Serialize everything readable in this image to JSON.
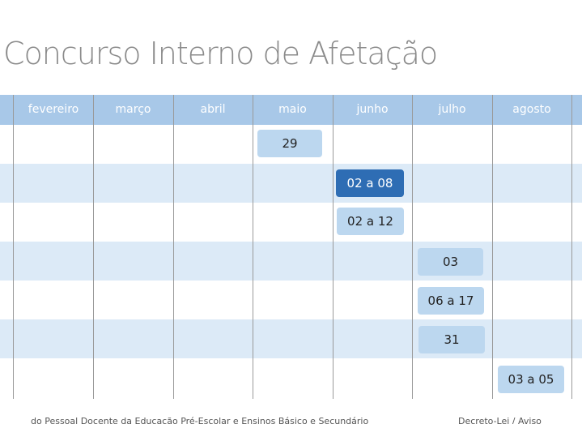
{
  "title": "Concurso Interno de Afetação",
  "months": [
    "fevereiro",
    "março",
    "abril",
    "maio",
    "junho",
    "julho",
    "agosto"
  ],
  "events": [
    {
      "label": "29",
      "month": "maio",
      "active": false
    },
    {
      "label": "02 a 08",
      "month": "junho",
      "active": true
    },
    {
      "label": "02 a 12",
      "month": "junho",
      "active": false
    },
    {
      "label": "03",
      "month": "julho",
      "active": false
    },
    {
      "label": "06 a 17",
      "month": "julho",
      "active": false
    },
    {
      "label": "31",
      "month": "julho",
      "active": false
    },
    {
      "label": "03 a 05",
      "month": "agosto",
      "active": false
    }
  ],
  "footer": {
    "left": "do Pessoal Docente da Educação Pré-Escolar e Ensinos Básico e Secundário",
    "right": "Decreto-Lei / Aviso"
  },
  "colors": {
    "header": "#a8c8e8",
    "row_shade": "#dceaf7",
    "pill": "#bcd7ef",
    "pill_active": "#2e6db4"
  }
}
